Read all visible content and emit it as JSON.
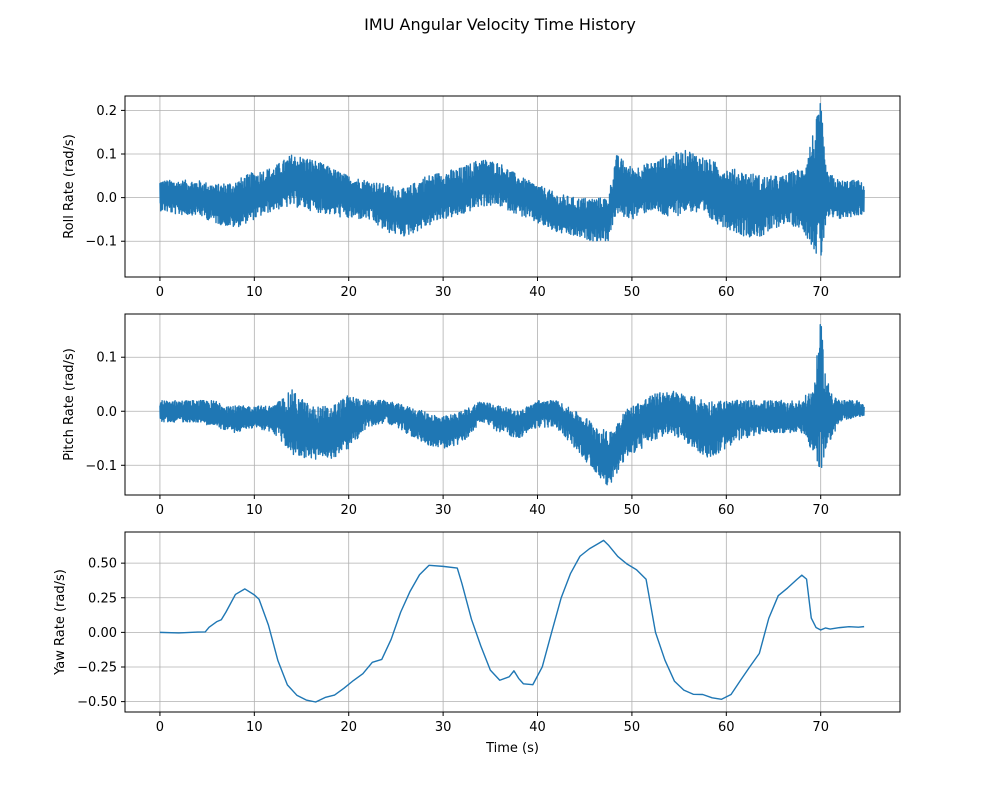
{
  "figure": {
    "title": "IMU Angular Velocity Time History"
  },
  "colors": {
    "line": "#1f77b4",
    "grid": "#b0b0b0",
    "axes": "#000000",
    "background": "#ffffff"
  },
  "chart_data": [
    {
      "type": "line",
      "name": "roll",
      "ylabel": "Roll Rate (rad/s)",
      "xlabel": "",
      "xlim": [
        -3.7,
        78.4
      ],
      "ylim": [
        -0.182,
        0.233
      ],
      "xticks": [
        0,
        10,
        20,
        30,
        40,
        50,
        60,
        70
      ],
      "yticks": [
        -0.1,
        0.0,
        0.1,
        0.2
      ],
      "ytick_labels": [
        "−0.1",
        "0.0",
        "0.1",
        "0.2"
      ],
      "grid": true,
      "series": [
        {
          "x": [
            0,
            2,
            4,
            6,
            8,
            10,
            12,
            14,
            16,
            18,
            20,
            22,
            24,
            26,
            28,
            30,
            32,
            34,
            36,
            38,
            40,
            42,
            44,
            46,
            47.5,
            48.3,
            50,
            52,
            54,
            56,
            58,
            60,
            62,
            64,
            66,
            68,
            69.3,
            70,
            70.6,
            72,
            74,
            74.6
          ],
          "y": [
            0.01,
            0.0,
            0.0,
            -0.01,
            -0.02,
            0.0,
            0.02,
            0.04,
            0.03,
            0.02,
            0.01,
            0.0,
            -0.02,
            -0.03,
            -0.01,
            0.01,
            0.0,
            0.04,
            0.03,
            0.01,
            -0.01,
            -0.04,
            -0.05,
            -0.05,
            -0.04,
            0.02,
            0.01,
            0.03,
            0.03,
            0.04,
            0.02,
            0.0,
            -0.01,
            -0.02,
            0.0,
            -0.01,
            0.01,
            0.05,
            0.0,
            -0.01,
            0.0,
            0.0
          ],
          "upper": [
            0.04,
            0.04,
            0.04,
            0.03,
            0.04,
            0.06,
            0.07,
            0.1,
            0.09,
            0.07,
            0.05,
            0.04,
            0.03,
            0.02,
            0.05,
            0.06,
            0.07,
            0.09,
            0.08,
            0.05,
            0.03,
            0.01,
            0.0,
            0.0,
            0.0,
            0.1,
            0.07,
            0.08,
            0.1,
            0.11,
            0.09,
            0.07,
            0.06,
            0.05,
            0.05,
            0.07,
            0.16,
            0.22,
            0.06,
            0.04,
            0.04,
            0.03
          ],
          "lower": [
            -0.03,
            -0.04,
            -0.04,
            -0.06,
            -0.07,
            -0.05,
            -0.03,
            -0.02,
            -0.03,
            -0.04,
            -0.05,
            -0.05,
            -0.08,
            -0.09,
            -0.07,
            -0.05,
            -0.04,
            -0.02,
            -0.02,
            -0.04,
            -0.06,
            -0.08,
            -0.09,
            -0.1,
            -0.1,
            -0.04,
            -0.05,
            -0.03,
            -0.05,
            -0.03,
            -0.05,
            -0.07,
            -0.09,
            -0.09,
            -0.06,
            -0.07,
            -0.12,
            -0.16,
            -0.05,
            -0.05,
            -0.04,
            -0.04
          ]
        }
      ]
    },
    {
      "type": "line",
      "name": "pitch",
      "ylabel": "Pitch Rate (rad/s)",
      "xlabel": "",
      "xlim": [
        -3.7,
        78.4
      ],
      "ylim": [
        -0.155,
        0.18
      ],
      "xticks": [
        0,
        10,
        20,
        30,
        40,
        50,
        60,
        70
      ],
      "yticks": [
        -0.1,
        0.0,
        0.1
      ],
      "ytick_labels": [
        "−0.1",
        "0.0",
        "0.1"
      ],
      "grid": true,
      "series": [
        {
          "x": [
            0,
            2,
            4,
            6,
            8,
            10,
            12,
            14,
            16,
            18,
            20,
            22,
            24,
            26,
            28,
            30,
            32,
            34,
            36,
            38,
            40,
            42,
            44,
            46,
            47.5,
            49,
            50,
            52,
            54,
            56,
            58,
            60,
            62,
            64,
            66,
            68,
            69.3,
            70,
            70.6,
            72,
            74,
            74.6
          ],
          "y": [
            0.0,
            0.0,
            0.0,
            -0.01,
            -0.02,
            -0.01,
            -0.01,
            -0.03,
            -0.05,
            -0.05,
            -0.02,
            0.0,
            0.0,
            -0.01,
            -0.03,
            -0.04,
            -0.03,
            0.0,
            -0.01,
            -0.02,
            0.0,
            0.0,
            -0.03,
            -0.07,
            -0.1,
            -0.05,
            -0.03,
            -0.01,
            0.0,
            -0.02,
            -0.03,
            -0.02,
            -0.01,
            -0.01,
            -0.02,
            -0.01,
            -0.02,
            0.02,
            -0.02,
            0.0,
            0.0,
            0.0
          ],
          "upper": [
            0.02,
            0.02,
            0.02,
            0.02,
            0.01,
            0.01,
            0.01,
            0.04,
            0.01,
            0.01,
            0.03,
            0.02,
            0.02,
            0.01,
            0.0,
            -0.01,
            0.0,
            0.02,
            0.01,
            0.0,
            0.02,
            0.02,
            0.0,
            -0.02,
            -0.04,
            0.0,
            0.01,
            0.03,
            0.04,
            0.03,
            0.02,
            0.02,
            0.02,
            0.02,
            0.02,
            0.02,
            0.05,
            0.17,
            0.06,
            0.02,
            0.02,
            0.01
          ],
          "lower": [
            -0.02,
            -0.02,
            -0.02,
            -0.03,
            -0.04,
            -0.03,
            -0.04,
            -0.08,
            -0.09,
            -0.09,
            -0.07,
            -0.03,
            -0.02,
            -0.04,
            -0.06,
            -0.07,
            -0.06,
            -0.02,
            -0.04,
            -0.05,
            -0.03,
            -0.03,
            -0.07,
            -0.11,
            -0.14,
            -0.1,
            -0.08,
            -0.06,
            -0.04,
            -0.06,
            -0.09,
            -0.07,
            -0.05,
            -0.04,
            -0.04,
            -0.04,
            -0.08,
            -0.12,
            -0.07,
            -0.02,
            -0.01,
            -0.01
          ]
        }
      ]
    },
    {
      "type": "line",
      "name": "yaw",
      "ylabel": "Yaw Rate (rad/s)",
      "xlabel": "Time (s)",
      "xlim": [
        -3.7,
        78.4
      ],
      "ylim": [
        -0.575,
        0.725
      ],
      "xticks": [
        0,
        10,
        20,
        30,
        40,
        50,
        60,
        70
      ],
      "yticks": [
        -0.5,
        -0.25,
        0.0,
        0.25,
        0.5
      ],
      "ytick_labels": [
        "−0.50",
        "−0.25",
        "0.00",
        "0.25",
        "0.50"
      ],
      "grid": true,
      "series": [
        {
          "x": [
            0,
            2,
            4,
            4.8,
            5.2,
            6,
            6.5,
            7,
            8,
            9,
            10,
            10.5,
            11.5,
            12.5,
            13.5,
            14.5,
            15.5,
            16.5,
            17.5,
            18.5,
            19.5,
            20.5,
            21.5,
            22.5,
            23.5,
            24.5,
            25.5,
            26.5,
            27.5,
            28.5,
            30,
            31.5,
            32,
            33,
            34,
            35,
            36,
            37,
            37.5,
            38,
            38.5,
            39.5,
            40.5,
            41.5,
            42.5,
            43.5,
            44.5,
            45.5,
            46.5,
            47,
            47.5,
            48.5,
            49.5,
            50.5,
            51.5,
            52.5,
            53.5,
            54.5,
            55.5,
            56.5,
            57.5,
            58.5,
            59.5,
            60.5,
            61.5,
            62.5,
            63.5,
            64.5,
            65.5,
            66.5,
            67.5,
            68,
            68.5,
            69,
            69.5,
            70,
            70.5,
            71,
            72,
            73,
            74,
            74.6
          ],
          "y": [
            0.0,
            0.0,
            0.0,
            0.0,
            0.04,
            0.08,
            0.09,
            0.15,
            0.27,
            0.31,
            0.27,
            0.24,
            0.05,
            -0.2,
            -0.38,
            -0.45,
            -0.49,
            -0.5,
            -0.47,
            -0.45,
            -0.4,
            -0.35,
            -0.3,
            -0.22,
            -0.2,
            -0.05,
            0.15,
            0.3,
            0.42,
            0.48,
            0.48,
            0.46,
            0.35,
            0.1,
            -0.1,
            -0.27,
            -0.35,
            -0.32,
            -0.28,
            -0.33,
            -0.37,
            -0.38,
            -0.25,
            0.0,
            0.25,
            0.43,
            0.55,
            0.6,
            0.64,
            0.66,
            0.63,
            0.55,
            0.49,
            0.45,
            0.38,
            0.0,
            -0.2,
            -0.35,
            -0.42,
            -0.45,
            -0.45,
            -0.47,
            -0.48,
            -0.45,
            -0.35,
            -0.25,
            -0.15,
            0.1,
            0.27,
            0.32,
            0.38,
            0.41,
            0.38,
            0.1,
            0.04,
            0.02,
            0.03,
            0.02,
            0.03,
            0.04,
            0.04,
            0.04
          ]
        }
      ]
    }
  ]
}
